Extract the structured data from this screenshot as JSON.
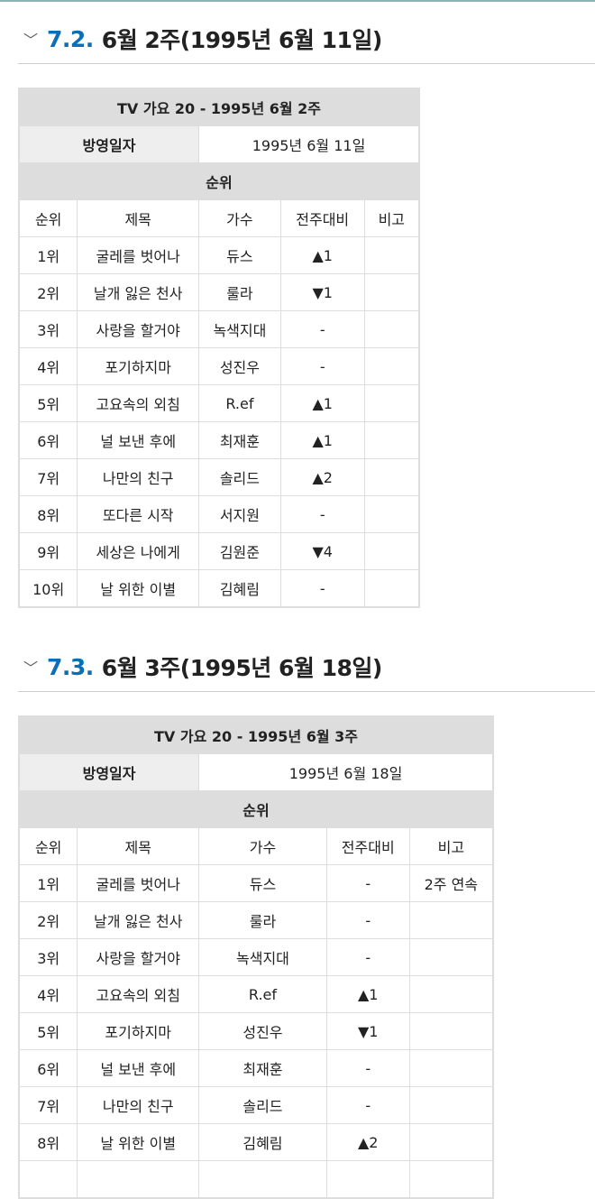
{
  "sections": [
    {
      "num": "7.2.",
      "title": "6월 2주(1995년 6월 11일)",
      "table": {
        "caption": "TV 가요 20 - 1995년 6월 2주",
        "date_label": "방영일자",
        "date": "1995년 6월 11일",
        "rank_header": "순위",
        "columns": [
          "순위",
          "제목",
          "가수",
          "전주대비",
          "비고"
        ],
        "rows": [
          [
            "1위",
            "굴레를 벗어나",
            "듀스",
            "▲1",
            ""
          ],
          [
            "2위",
            "날개 잃은 천사",
            "룰라",
            "▼1",
            ""
          ],
          [
            "3위",
            "사랑을 할거야",
            "녹색지대",
            "-",
            ""
          ],
          [
            "4위",
            "포기하지마",
            "성진우",
            "-",
            ""
          ],
          [
            "5위",
            "고요속의 외침",
            "R.ef",
            "▲1",
            ""
          ],
          [
            "6위",
            "널 보낸 후에",
            "최재훈",
            "▲1",
            ""
          ],
          [
            "7위",
            "나만의 친구",
            "솔리드",
            "▲2",
            ""
          ],
          [
            "8위",
            "또다른 시작",
            "서지원",
            "-",
            ""
          ],
          [
            "9위",
            "세상은 나에게",
            "김원준",
            "▼4",
            ""
          ],
          [
            "10위",
            "날 위한 이별",
            "김혜림",
            "-",
            ""
          ]
        ]
      }
    },
    {
      "num": "7.3.",
      "title": "6월 3주(1995년 6월 18일)",
      "table": {
        "caption": "TV 가요 20 - 1995년 6월 3주",
        "date_label": "방영일자",
        "date": "1995년 6월 18일",
        "rank_header": "순위",
        "columns": [
          "순위",
          "제목",
          "가수",
          "전주대비",
          "비고"
        ],
        "rows": [
          [
            "1위",
            "굴레를 벗어나",
            "듀스",
            "-",
            "2주 연속"
          ],
          [
            "2위",
            "날개 잃은 천사",
            "룰라",
            "-",
            ""
          ],
          [
            "3위",
            "사랑을 할거야",
            "녹색지대",
            "-",
            ""
          ],
          [
            "4위",
            "고요속의 외침",
            "R.ef",
            "▲1",
            ""
          ],
          [
            "5위",
            "포기하지마",
            "성진우",
            "▼1",
            ""
          ],
          [
            "6위",
            "널 보낸 후에",
            "최재훈",
            "-",
            ""
          ],
          [
            "7위",
            "나만의 친구",
            "솔리드",
            "-",
            ""
          ],
          [
            "8위",
            "날 위한 이별",
            "김혜림",
            "▲2",
            ""
          ],
          [
            "",
            "",
            "",
            "",
            ""
          ]
        ]
      }
    }
  ]
}
